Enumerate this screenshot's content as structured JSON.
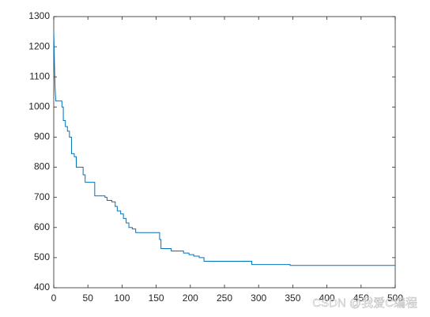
{
  "chart_data": {
    "type": "line",
    "x": [
      0,
      1,
      2,
      3,
      12,
      12,
      14,
      14,
      17,
      17,
      20,
      20,
      23,
      23,
      26,
      26,
      30,
      30,
      33,
      33,
      43,
      43,
      46,
      46,
      60,
      60,
      75,
      75,
      78,
      78,
      85,
      85,
      90,
      90,
      93,
      93,
      98,
      98,
      102,
      102,
      106,
      106,
      110,
      110,
      115,
      115,
      120,
      120,
      155,
      155,
      157,
      157,
      172,
      172,
      190,
      190,
      198,
      198,
      205,
      205,
      213,
      213,
      220,
      220,
      290,
      290,
      346,
      346,
      500
    ],
    "values": [
      1250,
      1150,
      1060,
      1020,
      1020,
      1000,
      1000,
      955,
      955,
      935,
      935,
      920,
      920,
      900,
      900,
      845,
      845,
      835,
      835,
      800,
      800,
      775,
      775,
      750,
      750,
      705,
      705,
      700,
      700,
      690,
      690,
      685,
      685,
      670,
      670,
      655,
      655,
      645,
      645,
      630,
      630,
      615,
      615,
      600,
      600,
      595,
      595,
      583,
      583,
      560,
      560,
      530,
      530,
      522,
      522,
      515,
      515,
      510,
      510,
      505,
      505,
      500,
      500,
      488,
      488,
      477,
      477,
      474,
      474
    ],
    "color": "#0072bd",
    "xlim": [
      0,
      500
    ],
    "xticks": [
      0,
      50,
      100,
      150,
      200,
      250,
      300,
      350,
      400,
      450,
      500
    ],
    "ylim": [
      400,
      1300
    ],
    "yticks": [
      400,
      500,
      600,
      700,
      800,
      900,
      1000,
      1100,
      1200,
      1300
    ],
    "grid": false,
    "watermark": "CSDN @我爱C编程"
  }
}
